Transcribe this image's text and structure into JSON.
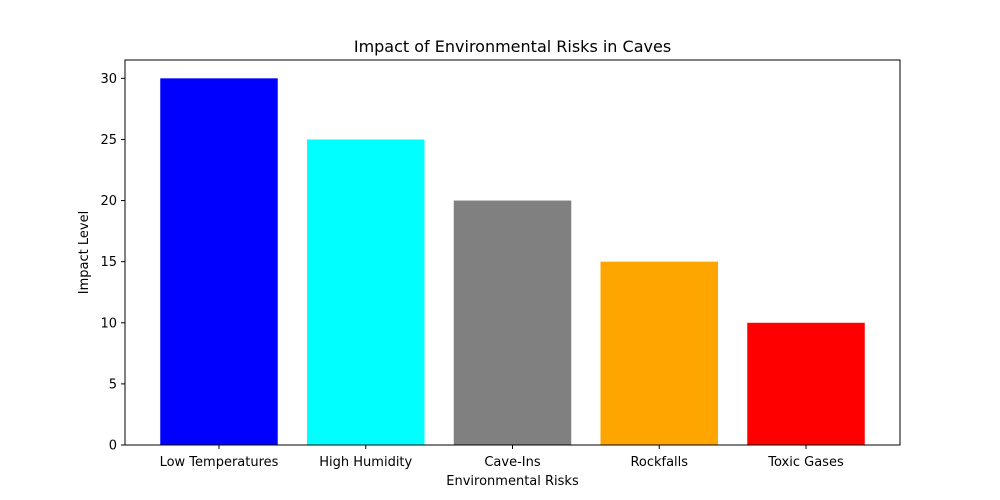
{
  "chart_data": {
    "type": "bar",
    "title": "Impact of Environmental Risks in Caves",
    "xlabel": "Environmental Risks",
    "ylabel": "Impact Level",
    "categories": [
      "Low Temperatures",
      "High Humidity",
      "Cave-Ins",
      "Rockfalls",
      "Toxic Gases"
    ],
    "values": [
      30,
      25,
      20,
      15,
      10
    ],
    "colors": [
      "#0000ff",
      "#00ffff",
      "#808080",
      "#ffa500",
      "#ff0000"
    ],
    "ylim": [
      0,
      31.5
    ],
    "yticks": [
      0,
      5,
      10,
      15,
      20,
      25,
      30
    ],
    "grid": false,
    "legend": "none"
  }
}
